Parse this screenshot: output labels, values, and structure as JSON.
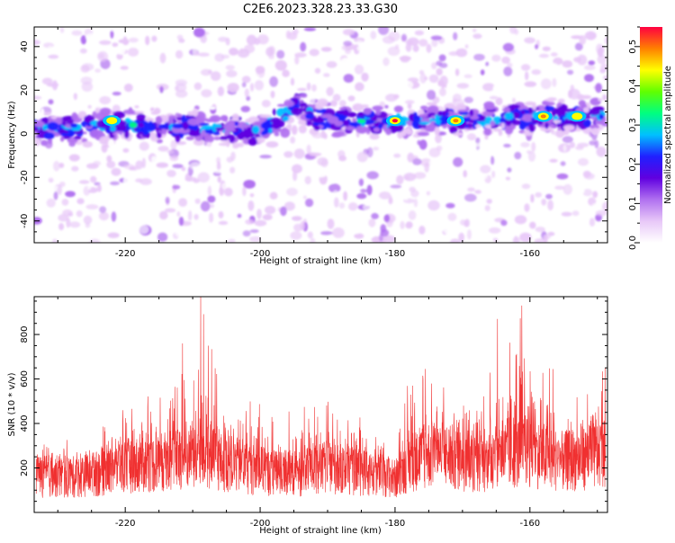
{
  "figure": {
    "title": "C2E6.2023.328.23.33.G30"
  },
  "chart_data": [
    {
      "type": "heatmap",
      "xlabel": "Height of straight line (km)",
      "ylabel": "Frequency (Hz)",
      "xlim": [
        -233.5,
        -148.5
      ],
      "ylim": [
        -50,
        49
      ],
      "xticks": [
        -220,
        -200,
        -180,
        -160
      ],
      "yticks": [
        -40,
        -20,
        0,
        20,
        40
      ],
      "colorbar": {
        "label": "Normalized spectral amplitude",
        "range": [
          0.0,
          0.55
        ],
        "ticks": [
          0.0,
          0.1,
          0.2,
          0.3,
          0.4,
          0.5
        ],
        "colors": [
          "#ffffff",
          "#e8c8f8",
          "#b070f0",
          "#6000e0",
          "#2020ff",
          "#00c0ff",
          "#00ff80",
          "#60ff00",
          "#ffff00",
          "#ff8000",
          "#ff0040"
        ]
      },
      "band": {
        "description": "High-amplitude band centred near 5 Hz",
        "center_hz": [
          {
            "x": -233,
            "y": 2
          },
          {
            "x": -220,
            "y": 4
          },
          {
            "x": -210,
            "y": 3
          },
          {
            "x": -200,
            "y": 1
          },
          {
            "x": -194,
            "y": 14
          },
          {
            "x": -192,
            "y": 7
          },
          {
            "x": -185,
            "y": 6
          },
          {
            "x": -175,
            "y": 6
          },
          {
            "x": -165,
            "y": 7
          },
          {
            "x": -155,
            "y": 8
          },
          {
            "x": -149,
            "y": 9
          }
        ],
        "peak_hotspots": [
          {
            "x": -222,
            "y": 6,
            "amp": 0.45
          },
          {
            "x": -180,
            "y": 6,
            "amp": 0.55
          },
          {
            "x": -171,
            "y": 6,
            "amp": 0.5
          },
          {
            "x": -158,
            "y": 8,
            "amp": 0.48
          },
          {
            "x": -153,
            "y": 8,
            "amp": 0.42
          }
        ]
      }
    },
    {
      "type": "line",
      "xlabel": "Height of straight line (km)",
      "ylabel": "SNR (10 * v/v)",
      "xlim": [
        -233.5,
        -148.5
      ],
      "ylim": [
        0,
        970
      ],
      "xticks": [
        -220,
        -200,
        -180,
        -160
      ],
      "yticks": [
        200,
        400,
        600,
        800
      ],
      "series": [
        {
          "color": "#f03030",
          "x": [
            -233,
            -228,
            -224,
            -220,
            -216,
            -212,
            -209,
            -206,
            -202,
            -198,
            -194,
            -190,
            -186,
            -182,
            -180,
            -178,
            -175,
            -172,
            -168,
            -164,
            -161,
            -158,
            -155,
            -152,
            -149
          ],
          "y_median": [
            190,
            180,
            200,
            240,
            250,
            270,
            290,
            260,
            230,
            200,
            200,
            230,
            210,
            190,
            170,
            250,
            300,
            290,
            250,
            280,
            320,
            290,
            260,
            280,
            300
          ],
          "y_max": [
            300,
            330,
            370,
            500,
            560,
            620,
            970,
            600,
            560,
            450,
            480,
            500,
            480,
            390,
            270,
            600,
            640,
            590,
            560,
            700,
            910,
            760,
            530,
            560,
            650
          ]
        }
      ],
      "peaks": [
        {
          "x": -208.8,
          "y": 970
        },
        {
          "x": -164.8,
          "y": 870
        },
        {
          "x": -161.2,
          "y": 930
        },
        {
          "x": -175.5,
          "y": 645
        },
        {
          "x": -211.5,
          "y": 760
        }
      ]
    }
  ]
}
